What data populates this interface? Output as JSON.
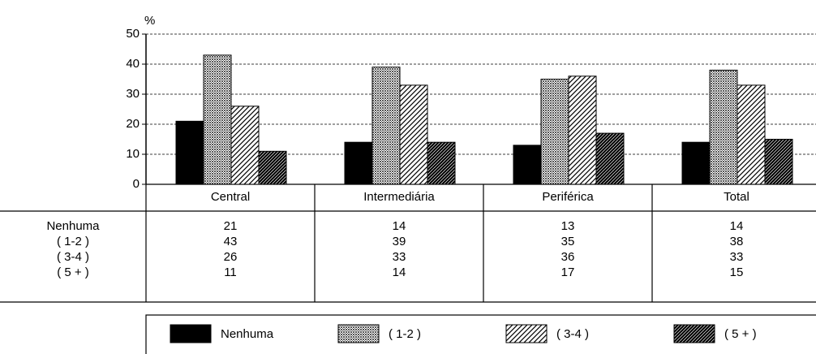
{
  "chart_data": {
    "type": "bar",
    "ylabel": "%",
    "categories": [
      "Central",
      "Intermediária",
      "Periférica",
      "Total"
    ],
    "series": [
      {
        "name": "Nenhuma",
        "color": "#000000",
        "pattern": "solid",
        "values": [
          21,
          14,
          13,
          14
        ]
      },
      {
        "name": "( 1-2 )",
        "color": "#555555",
        "pattern": "dots",
        "values": [
          43,
          39,
          35,
          38
        ]
      },
      {
        "name": "( 3-4 )",
        "color": "#000000",
        "pattern": "hatch",
        "values": [
          26,
          33,
          36,
          33
        ]
      },
      {
        "name": "( 5 + )",
        "color": "#000000",
        "pattern": "dense-hatch",
        "values": [
          11,
          14,
          17,
          15
        ]
      }
    ],
    "ylim": [
      0,
      50
    ],
    "yticks": [
      0,
      10,
      20,
      30,
      40,
      50
    ],
    "grid": true
  }
}
